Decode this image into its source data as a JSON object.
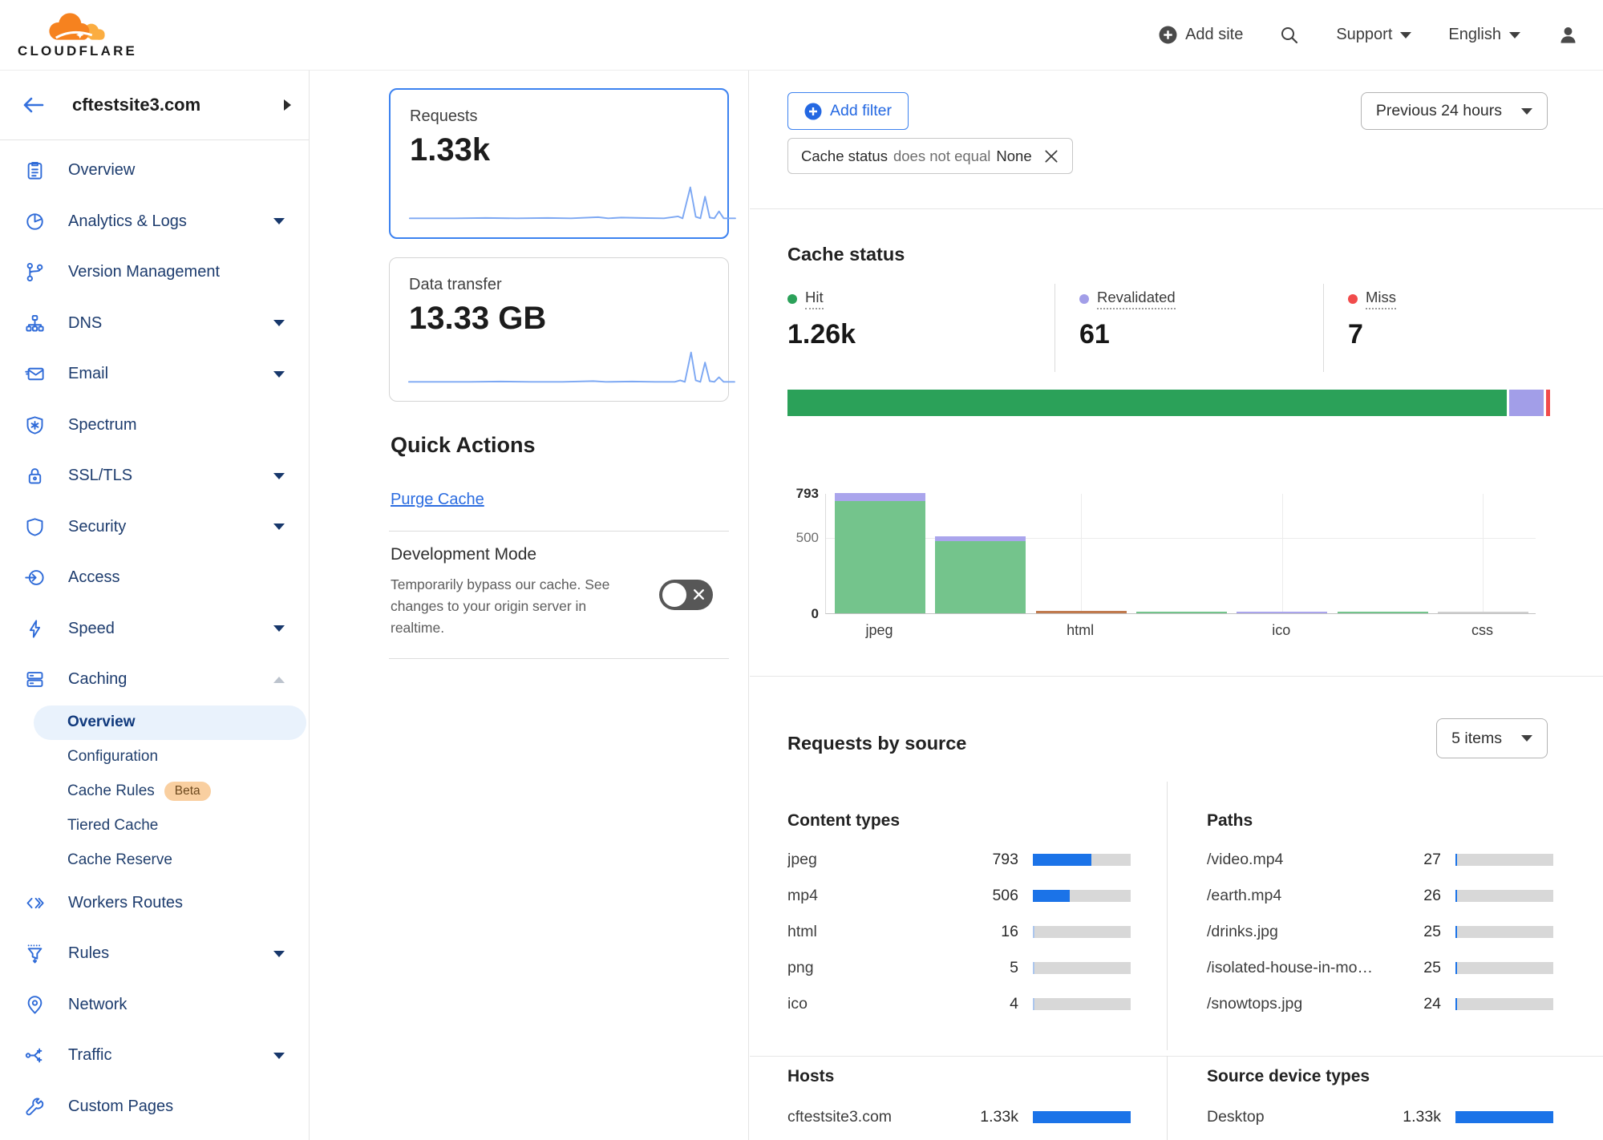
{
  "topnav": {
    "brand": "CLOUDFLARE",
    "add_site": "Add site",
    "support": "Support",
    "language": "English"
  },
  "sidebar": {
    "site_name": "cftestsite3.com",
    "items": [
      {
        "label": "Overview",
        "icon": "overview-icon"
      },
      {
        "label": "Analytics & Logs",
        "icon": "analytics-icon",
        "caret": "down"
      },
      {
        "label": "Version Management",
        "icon": "version-management-icon"
      },
      {
        "label": "DNS",
        "icon": "dns-icon",
        "caret": "down"
      },
      {
        "label": "Email",
        "icon": "email-icon",
        "caret": "down"
      },
      {
        "label": "Spectrum",
        "icon": "spectrum-icon"
      },
      {
        "label": "SSL/TLS",
        "icon": "ssl-tls-icon",
        "caret": "down"
      },
      {
        "label": "Security",
        "icon": "security-icon",
        "caret": "down"
      },
      {
        "label": "Access",
        "icon": "access-icon"
      },
      {
        "label": "Speed",
        "icon": "speed-icon",
        "caret": "down"
      },
      {
        "label": "Caching",
        "icon": "caching-icon",
        "caret": "up",
        "expanded": true,
        "subitems": [
          {
            "label": "Overview",
            "active": true
          },
          {
            "label": "Configuration"
          },
          {
            "label": "Cache Rules",
            "badge": "Beta"
          },
          {
            "label": "Tiered Cache"
          },
          {
            "label": "Cache Reserve"
          }
        ]
      },
      {
        "label": "Workers Routes",
        "icon": "workers-routes-icon"
      },
      {
        "label": "Rules",
        "icon": "rules-icon",
        "caret": "down"
      },
      {
        "label": "Network",
        "icon": "network-icon"
      },
      {
        "label": "Traffic",
        "icon": "traffic-icon",
        "caret": "down"
      },
      {
        "label": "Custom Pages",
        "icon": "custom-pages-icon"
      }
    ]
  },
  "metric_cards": [
    {
      "title": "Requests",
      "value": "1.33k",
      "selected": true
    },
    {
      "title": "Data transfer",
      "value": "13.33 GB",
      "selected": false
    }
  ],
  "quick_actions": {
    "title": "Quick Actions",
    "purge_cache_label": "Purge Cache",
    "development_mode": {
      "title": "Development Mode",
      "description": "Temporarily bypass our cache. See changes to your origin server in realtime.",
      "state": "off"
    }
  },
  "filter_bar": {
    "add_filter_label": "Add filter",
    "chip": {
      "field": "Cache status",
      "operator": "does not equal",
      "value": "None"
    },
    "time_range": "Previous 24 hours"
  },
  "colors": {
    "hit": "#2ba159",
    "revalidated": "#a29ee8",
    "miss": "#f14b4b",
    "bar_green": "#74c48c",
    "bar_purple": "#aaa5ec",
    "bar_orange": "#c07a4e",
    "bar_gray": "#cfcfcf",
    "meter_fill": "#1b73e8",
    "meter_fill_light": "#abc6ee",
    "meter_track": "#d8d8d8",
    "link_blue": "#2b6ce0",
    "brand_orange": "#f6821f",
    "brand_orange_light": "#fbad41"
  },
  "cache_status": {
    "title": "Cache status",
    "legend": [
      {
        "label": "Hit",
        "value": "1.26k",
        "color_key": "hit"
      },
      {
        "label": "Revalidated",
        "value": "61",
        "color_key": "revalidated"
      },
      {
        "label": "Miss",
        "value": "7",
        "color_key": "miss"
      }
    ],
    "stacked_bar": [
      {
        "color_key": "hit",
        "value": 1260
      },
      {
        "color_key": "revalidated",
        "value": 61
      },
      {
        "color_key": "miss",
        "value": 7
      }
    ]
  },
  "chart_data": {
    "type": "bar",
    "title": "",
    "ylim": [
      0,
      793
    ],
    "yticks": [
      793,
      500,
      0
    ],
    "x_tick_labels": [
      "jpeg",
      "html",
      "ico",
      "css"
    ],
    "grid": true,
    "legend_position": "none",
    "bars": [
      {
        "category": "jpeg",
        "segments": [
          {
            "color_key": "bar_green",
            "value": 742
          },
          {
            "color_key": "bar_purple",
            "value": 51
          }
        ]
      },
      {
        "category": "",
        "segments": [
          {
            "color_key": "bar_green",
            "value": 478
          },
          {
            "color_key": "bar_purple",
            "value": 28
          }
        ]
      },
      {
        "category": "html",
        "segments": [
          {
            "color_key": "bar_orange",
            "value": 16
          }
        ]
      },
      {
        "category": "",
        "segments": [
          {
            "color_key": "bar_green",
            "value": 5
          }
        ]
      },
      {
        "category": "ico",
        "segments": [
          {
            "color_key": "bar_purple",
            "value": 4
          }
        ]
      },
      {
        "category": "",
        "segments": [
          {
            "color_key": "bar_green",
            "value": 3
          }
        ]
      },
      {
        "category": "css",
        "segments": [
          {
            "color_key": "bar_gray",
            "value": 2
          }
        ]
      }
    ]
  },
  "requests_by_source": {
    "title": "Requests by source",
    "items_count_label": "5 items",
    "bar_max": 1330,
    "tables": [
      {
        "title": "Content types",
        "rows": [
          [
            "jpeg",
            "793",
            793
          ],
          [
            "mp4",
            "506",
            506
          ],
          [
            "html",
            "16",
            16
          ],
          [
            "png",
            "5",
            5
          ],
          [
            "ico",
            "4",
            4
          ]
        ]
      },
      {
        "title": "Paths",
        "rows": [
          [
            "/video.mp4",
            "27",
            27
          ],
          [
            "/earth.mp4",
            "26",
            26
          ],
          [
            "/drinks.jpg",
            "25",
            25
          ],
          [
            "/isolated-house-in-mo…",
            "25",
            25
          ],
          [
            "/snowtops.jpg",
            "24",
            24
          ]
        ]
      },
      {
        "title": "Hosts",
        "rows": [
          [
            "cftestsite3.com",
            "1.33k",
            1330
          ]
        ]
      },
      {
        "title": "Source device types",
        "rows": [
          [
            "Desktop",
            "1.33k",
            1330
          ]
        ]
      }
    ]
  }
}
